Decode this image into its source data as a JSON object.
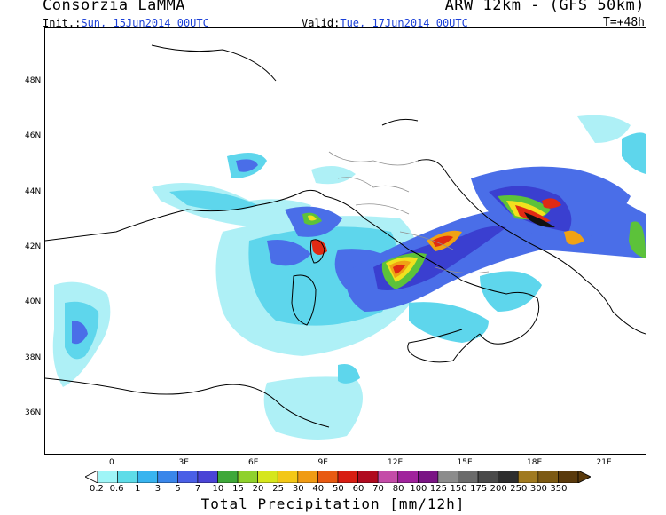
{
  "header": {
    "title_left": "Consorzia LaMMA",
    "title_right": "ARW 12km - (GFS 50km)",
    "init_label": "Init.:",
    "init_value": "Sun, 15Jun2014 00UTC",
    "valid_label": "Valid:",
    "valid_value": "Tue, 17Jun2014 00UTC",
    "forecast_step": "T=+48h"
  },
  "map": {
    "lat_labels": [
      "48N",
      "46N",
      "44N",
      "42N",
      "40N",
      "38N",
      "36N"
    ],
    "lon_labels": [
      "0",
      "3E",
      "6E",
      "9E",
      "12E",
      "15E",
      "18E",
      "21E"
    ]
  },
  "colorbar": {
    "title": "Total Precipitation [mm/12h]",
    "levels": [
      "0.2",
      "0.6",
      "1",
      "3",
      "5",
      "7",
      "10",
      "15",
      "20",
      "25",
      "30",
      "40",
      "50",
      "60",
      "70",
      "80",
      "100",
      "125",
      "150",
      "175",
      "200",
      "250",
      "300",
      "350"
    ],
    "colors": [
      "#9ff5f7",
      "#5edce8",
      "#38b4ef",
      "#3a86ea",
      "#4a5fe6",
      "#4a44d6",
      "#3fa83a",
      "#8fd12c",
      "#d6e61c",
      "#f3c717",
      "#f09b14",
      "#e85a12",
      "#d81d12",
      "#b00a1f",
      "#c44ca8",
      "#a0229c",
      "#7a1484",
      "#8c8c8c",
      "#6b6b6b",
      "#4a4a4a",
      "#2e2e2e",
      "#a07a20",
      "#7c5a14",
      "#5a3a0c"
    ]
  },
  "colors": {
    "light_cyan": "#aef0f6",
    "cyan": "#5ed6ec",
    "blue": "#4a6ee8",
    "dark_blue": "#3a3fd0",
    "green": "#5cc23a",
    "yellow": "#f2e11e",
    "orange": "#f0a214",
    "red": "#e02a14",
    "dark_red": "#b00a1f",
    "purple": "#8e1c8c",
    "black": "#111111"
  }
}
